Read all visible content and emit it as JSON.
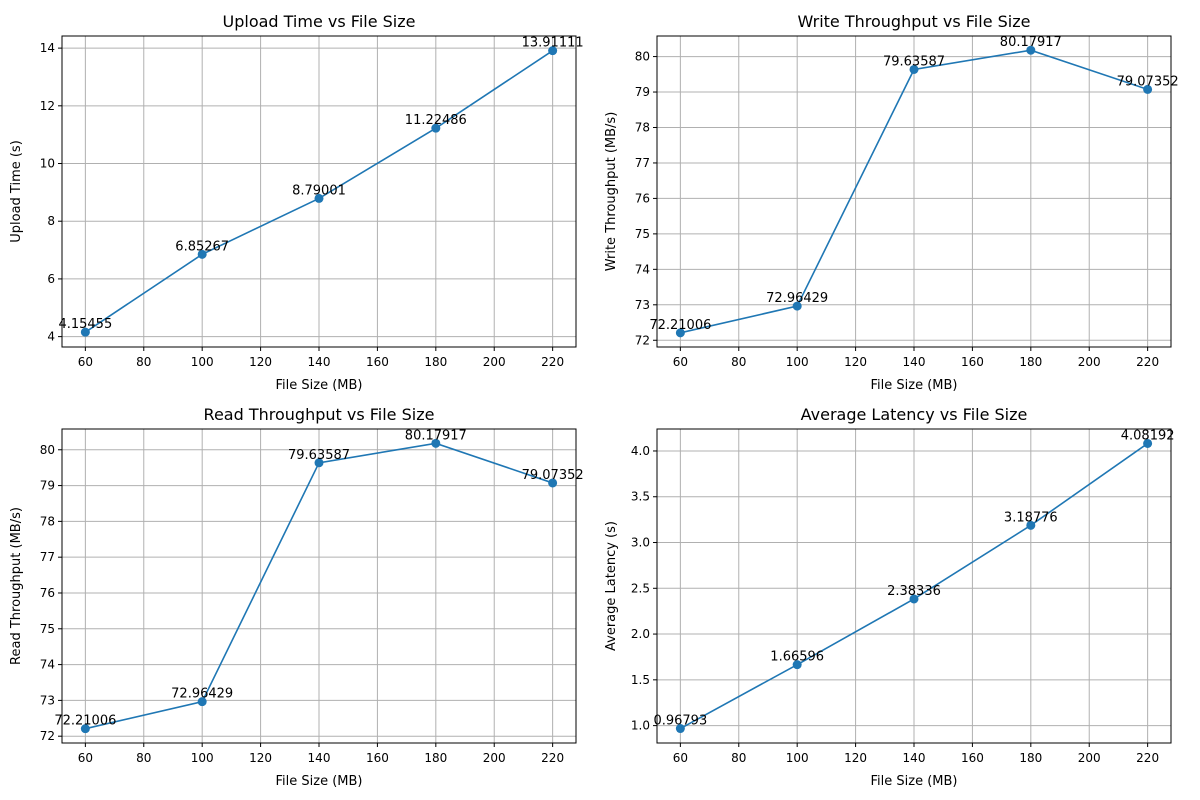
{
  "series_color": "#1f77b4",
  "chart_data": [
    {
      "type": "line",
      "title": "Upload Time vs File Size",
      "xlabel": "File Size (MB)",
      "ylabel": "Upload Time (s)",
      "x": [
        60,
        100,
        140,
        180,
        220
      ],
      "y": [
        4.15455,
        6.85267,
        8.79001,
        11.22486,
        13.91111
      ],
      "data_labels": [
        "4.15455",
        "6.85267",
        "8.79001",
        "11.22486",
        "13.91111"
      ],
      "xlim": [
        52,
        228
      ],
      "ylim": [
        3.64,
        14.42
      ],
      "xticks": [
        60,
        80,
        100,
        120,
        140,
        160,
        180,
        200,
        220
      ],
      "xtick_labels": [
        "60",
        "80",
        "100",
        "120",
        "140",
        "160",
        "180",
        "200",
        "220"
      ],
      "yticks": [
        4,
        6,
        8,
        10,
        12,
        14
      ],
      "ytick_labels": [
        "4",
        "6",
        "8",
        "10",
        "12",
        "14"
      ],
      "grid": true,
      "marker": "circle"
    },
    {
      "type": "line",
      "title": "Write Throughput vs File Size",
      "xlabel": "File Size (MB)",
      "ylabel": "Write Throughput (MB/s)",
      "x": [
        60,
        100,
        140,
        180,
        220
      ],
      "y": [
        72.21006,
        72.96429,
        79.63587,
        80.17917,
        79.07352
      ],
      "data_labels": [
        "72.21006",
        "72.96429",
        "79.63587",
        "80.17917",
        "79.07352"
      ],
      "xlim": [
        52,
        228
      ],
      "ylim": [
        71.81,
        80.58
      ],
      "xticks": [
        60,
        80,
        100,
        120,
        140,
        160,
        180,
        200,
        220
      ],
      "xtick_labels": [
        "60",
        "80",
        "100",
        "120",
        "140",
        "160",
        "180",
        "200",
        "220"
      ],
      "yticks": [
        72,
        73,
        74,
        75,
        76,
        77,
        78,
        79,
        80
      ],
      "ytick_labels": [
        "72",
        "73",
        "74",
        "75",
        "76",
        "77",
        "78",
        "79",
        "80"
      ],
      "grid": true,
      "marker": "circle"
    },
    {
      "type": "line",
      "title": "Read Throughput vs File Size",
      "xlabel": "File Size (MB)",
      "ylabel": "Read Throughput (MB/s)",
      "x": [
        60,
        100,
        140,
        180,
        220
      ],
      "y": [
        72.21006,
        72.96429,
        79.63587,
        80.17917,
        79.07352
      ],
      "data_labels": [
        "72.21006",
        "72.96429",
        "79.63587",
        "80.17917",
        "79.07352"
      ],
      "xlim": [
        52,
        228
      ],
      "ylim": [
        71.81,
        80.58
      ],
      "xticks": [
        60,
        80,
        100,
        120,
        140,
        160,
        180,
        200,
        220
      ],
      "xtick_labels": [
        "60",
        "80",
        "100",
        "120",
        "140",
        "160",
        "180",
        "200",
        "220"
      ],
      "yticks": [
        72,
        73,
        74,
        75,
        76,
        77,
        78,
        79,
        80
      ],
      "ytick_labels": [
        "72",
        "73",
        "74",
        "75",
        "76",
        "77",
        "78",
        "79",
        "80"
      ],
      "grid": true,
      "marker": "circle"
    },
    {
      "type": "line",
      "title": "Average Latency vs File Size",
      "xlabel": "File Size (MB)",
      "ylabel": "Average Latency (s)",
      "x": [
        60,
        100,
        140,
        180,
        220
      ],
      "y": [
        0.96793,
        1.66596,
        2.38336,
        3.18776,
        4.08192
      ],
      "data_labels": [
        "0.96793",
        "1.66596",
        "2.38336",
        "3.18776",
        "4.08192"
      ],
      "xlim": [
        52,
        228
      ],
      "ylim": [
        0.81,
        4.24
      ],
      "xticks": [
        60,
        80,
        100,
        120,
        140,
        160,
        180,
        200,
        220
      ],
      "xtick_labels": [
        "60",
        "80",
        "100",
        "120",
        "140",
        "160",
        "180",
        "200",
        "220"
      ],
      "yticks": [
        1.0,
        1.5,
        2.0,
        2.5,
        3.0,
        3.5,
        4.0
      ],
      "ytick_labels": [
        "1.0",
        "1.5",
        "2.0",
        "2.5",
        "3.0",
        "3.5",
        "4.0"
      ],
      "grid": true,
      "marker": "circle"
    }
  ]
}
